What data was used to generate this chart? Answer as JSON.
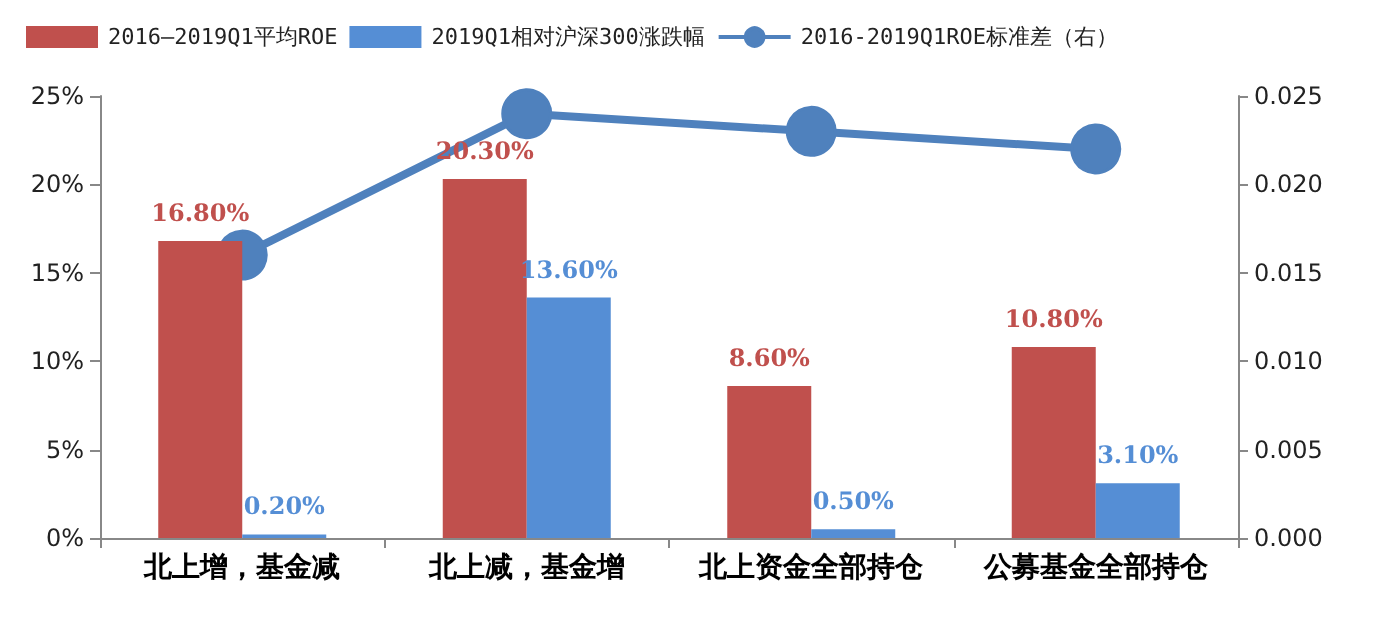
{
  "chart_data": {
    "type": "bar",
    "categories": [
      "北上增，基金减",
      "北上减，基金增",
      "北上资金全部持仓",
      "公募基金全部持仓"
    ],
    "series": [
      {
        "name": "2016—2019Q1平均ROE",
        "color": "#c0504d",
        "values": [
          16.8,
          20.3,
          8.6,
          10.8
        ],
        "value_labels": [
          "16.80%",
          "20.30%",
          "8.60%",
          "10.80%"
        ]
      },
      {
        "name": "2019Q1相对沪深300涨跌幅",
        "color": "#558ed5",
        "values": [
          0.2,
          13.6,
          0.5,
          3.1
        ],
        "value_labels": [
          "0.20%",
          "13.60%",
          "0.50%",
          "3.10%"
        ]
      },
      {
        "name": "2016-2019Q1ROE标准差（右）",
        "type": "line",
        "axis": "y2",
        "color": "#4f81bd",
        "marker": "circle",
        "values": [
          0.016,
          0.024,
          0.023,
          0.022
        ]
      }
    ],
    "ylim": [
      0,
      25
    ],
    "yticks": [
      {
        "value": 0,
        "label": "0%"
      },
      {
        "value": 5,
        "label": "5%"
      },
      {
        "value": 10,
        "label": "10%"
      },
      {
        "value": 15,
        "label": "15%"
      },
      {
        "value": 20,
        "label": "20%"
      },
      {
        "value": 25,
        "label": "25%"
      }
    ],
    "y2lim": [
      0,
      0.025
    ],
    "y2ticks": [
      {
        "value": 0,
        "label": "0.000"
      },
      {
        "value": 0.005,
        "label": "0.005"
      },
      {
        "value": 0.01,
        "label": "0.010"
      },
      {
        "value": 0.015,
        "label": "0.015"
      },
      {
        "value": 0.02,
        "label": "0.020"
      },
      {
        "value": 0.025,
        "label": "0.025"
      }
    ],
    "grid": false,
    "legend": "top"
  }
}
